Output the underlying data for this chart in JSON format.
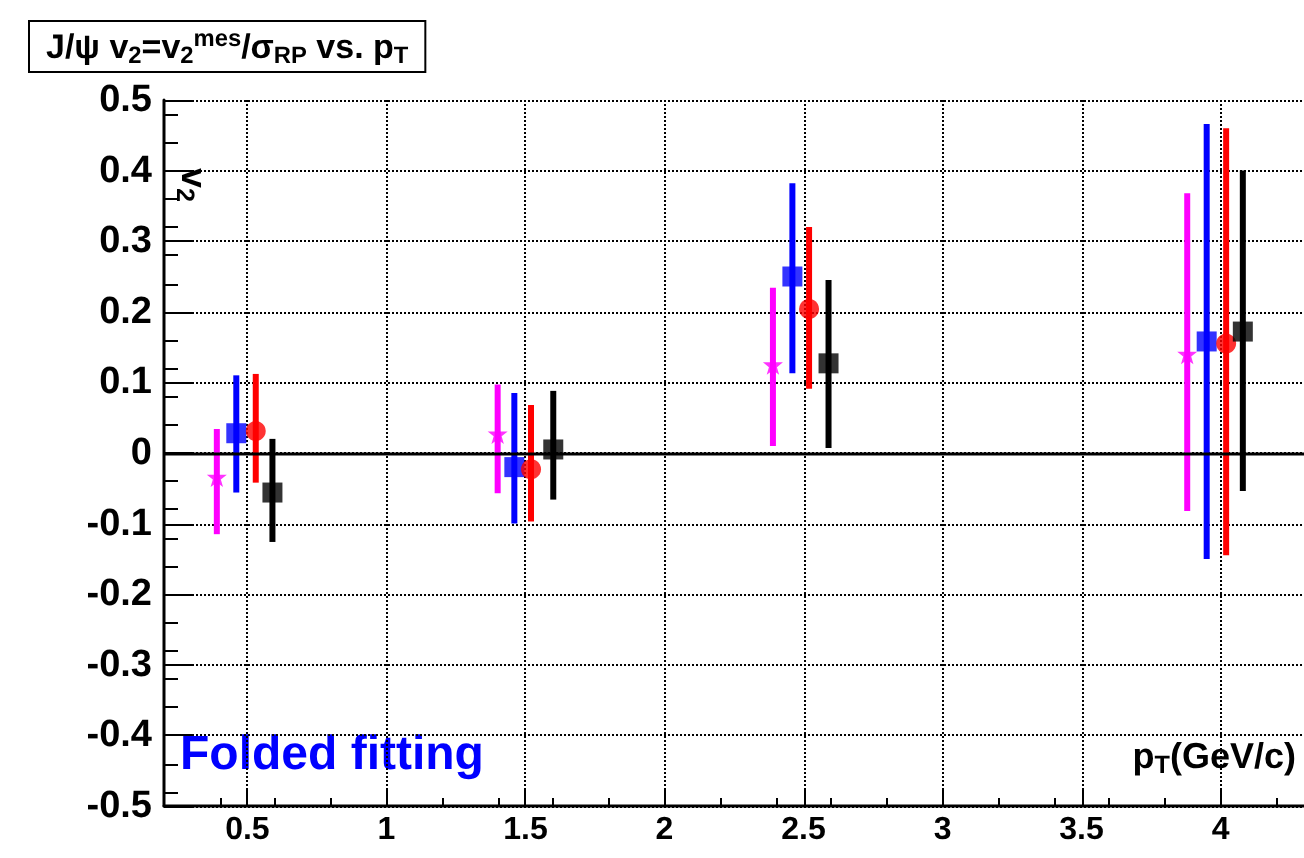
{
  "chart_data": {
    "type": "scatter",
    "title": "J/ψ v$_{2}$=v$_{2}$$^{mes}$/σ$_{RP}$ vs. p$_{T}$",
    "xlabel": "p$_{T}$(GeV/c)",
    "ylabel": "v$_{2}$",
    "annotations": [
      "Folded fitting"
    ],
    "series": [
      {
        "color": "#ff00ff",
        "marker": "star",
        "x": [
          0.39,
          1.4,
          2.39,
          3.88
        ],
        "values": [
          -0.034,
          0.027,
          0.125,
          0.14
        ],
        "errors": [
          [
            -0.115,
            0.034
          ],
          [
            -0.057,
            0.097
          ],
          [
            0.01,
            0.234
          ],
          [
            -0.082,
            0.368
          ]
        ]
      },
      {
        "color": "#0000ff",
        "marker": "square",
        "x": [
          0.46,
          1.46,
          2.46,
          3.95
        ],
        "values": [
          0.028,
          -0.02,
          0.25,
          0.158
        ],
        "errors": [
          [
            -0.056,
            0.11
          ],
          [
            -0.1,
            0.085
          ],
          [
            0.113,
            0.382
          ],
          [
            -0.15,
            0.466
          ]
        ]
      },
      {
        "color": "#ff0000",
        "marker": "circle",
        "x": [
          0.53,
          1.52,
          2.52,
          4.02
        ],
        "values": [
          0.031,
          -0.023,
          0.204,
          0.155
        ],
        "errors": [
          [
            -0.042,
            0.112
          ],
          [
            -0.097,
            0.068
          ],
          [
            0.091,
            0.32
          ],
          [
            -0.145,
            0.46
          ]
        ]
      },
      {
        "color": "#000000",
        "marker": "square",
        "x": [
          0.59,
          1.6,
          2.59,
          4.08
        ],
        "values": [
          -0.056,
          0.005,
          0.127,
          0.172
        ],
        "errors": [
          [
            -0.126,
            0.02
          ],
          [
            -0.066,
            0.088
          ],
          [
            0.007,
            0.245
          ],
          [
            -0.054,
            0.4
          ]
        ]
      }
    ],
    "xlim": [
      0.2,
      4.3
    ],
    "xticks": [
      0.5,
      1,
      1.5,
      2,
      2.5,
      3,
      3.5,
      4
    ],
    "ylim": [
      -0.5,
      0.5
    ],
    "yticks": [
      -0.5,
      -0.4,
      -0.3,
      -0.2,
      -0.1,
      0,
      0.1,
      0.2,
      0.3,
      0.4,
      0.5
    ],
    "ref_lines": [
      {
        "axis": "y",
        "value": 0,
        "color": "#000000"
      }
    ],
    "grid": true
  }
}
